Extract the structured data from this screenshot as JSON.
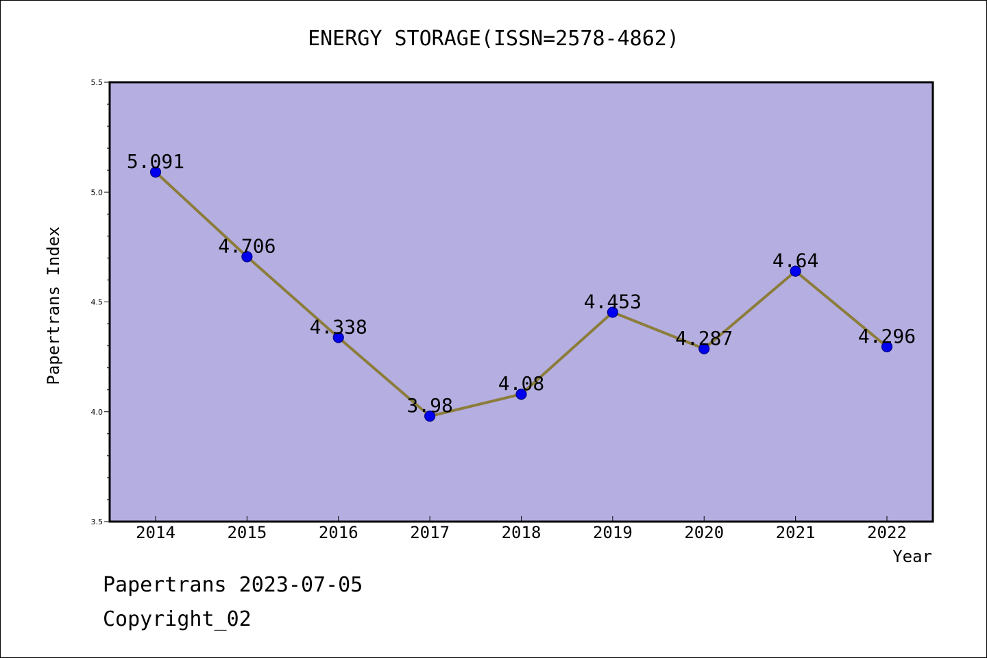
{
  "chart_data": {
    "type": "line",
    "title": "ENERGY STORAGE(ISSN=2578-4862)",
    "xlabel": "Year",
    "ylabel": "Papertrans Index",
    "categories": [
      "2014",
      "2015",
      "2016",
      "2017",
      "2018",
      "2019",
      "2020",
      "2021",
      "2022"
    ],
    "series": [
      {
        "values": [
          5.091,
          4.706,
          4.338,
          3.98,
          4.08,
          4.453,
          4.287,
          4.64,
          4.296
        ],
        "labels": [
          "5.091",
          "4.706",
          "4.338",
          "3.98",
          "4.08",
          "4.453",
          "4.287",
          "4.64",
          "4.296"
        ]
      }
    ],
    "ylim": [
      3.5,
      5.5
    ],
    "yticks": [
      "3.5",
      "4.0",
      "4.5",
      "5.0",
      "5.5"
    ],
    "grid": false,
    "colors": {
      "plot_background": "#b5aee1",
      "line": "#8b7d3a",
      "marker": "#0000ee",
      "marker_edge": "#000080"
    }
  },
  "footer": {
    "line1": "Papertrans 2023-07-05",
    "line2": "Copyright_02"
  }
}
